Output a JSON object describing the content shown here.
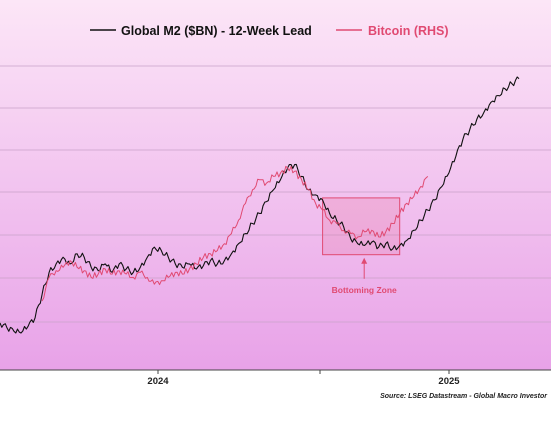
{
  "chart_data": {
    "type": "line",
    "title": "",
    "x_tick_labels": [
      "2024",
      "2025"
    ],
    "y_tick_labels": [],
    "grid": "horizontal",
    "legend_position": "top",
    "background": {
      "top_color": "#fce6f7",
      "bottom_color": "#e8a2e8"
    },
    "series": [
      {
        "name": "Global M2 ($BN) - 12-Week Lead",
        "color": "#111111",
        "axis": "left",
        "values": [
          25,
          22,
          20,
          19,
          23,
          28,
          42,
          55,
          60,
          64,
          60,
          66,
          64,
          58,
          56,
          60,
          55,
          60,
          57,
          55,
          58,
          64,
          70,
          68,
          64,
          60,
          58,
          60,
          57,
          59,
          62,
          60,
          62,
          66,
          72,
          78,
          84,
          90,
          97,
          104,
          110,
          117,
          119,
          112,
          104,
          101,
          98,
          90,
          86,
          82,
          75,
          72,
          71,
          73,
          70,
          72,
          69,
          71,
          74,
          80,
          86,
          92,
          98,
          106,
          114,
          124,
          134,
          140,
          146,
          150,
          156,
          160,
          164,
          167,
          170
        ]
      },
      {
        "name": "Bitcoin (RHS)",
        "color": "#e04a72",
        "axis": "right",
        "values": [
          null,
          null,
          null,
          null,
          null,
          null,
          38,
          52,
          56,
          58,
          62,
          58,
          56,
          52,
          54,
          57,
          54,
          56,
          54,
          52,
          55,
          52,
          48,
          50,
          52,
          55,
          54,
          57,
          60,
          64,
          66,
          68,
          72,
          78,
          86,
          96,
          104,
          110,
          108,
          112,
          114,
          117,
          115,
          110,
          104,
          96,
          92,
          86,
          84,
          80,
          78,
          76,
          79,
          80,
          76,
          79,
          84,
          90,
          96,
          100,
          106,
          112,
          null,
          null,
          null,
          null,
          null,
          null,
          null,
          null,
          null,
          null,
          null,
          null,
          null
        ]
      }
    ],
    "annotations": [
      {
        "label": "Bottoming Zone",
        "x_start": 46,
        "x_end": 57
      }
    ],
    "source": "Source: LSEG Datastream - Global Macro Investor"
  }
}
